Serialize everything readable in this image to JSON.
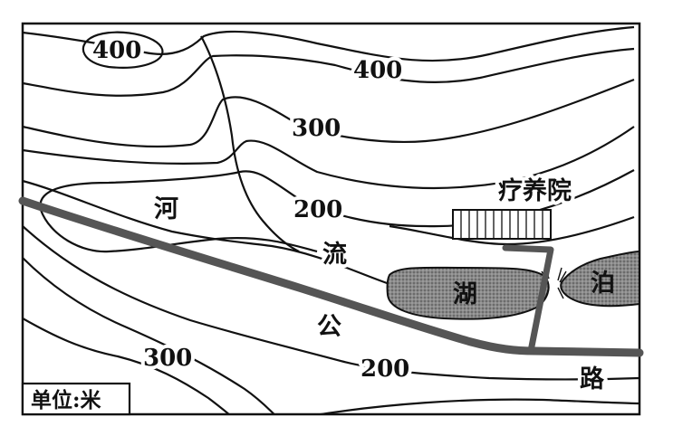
{
  "map": {
    "contour_labels": {
      "c400_top": "400",
      "c400_right": "400",
      "c300_top": "300",
      "c200_center": "200",
      "c300_bottom": "300",
      "c200_bottom": "200"
    },
    "features": {
      "sanatorium": "疗养院",
      "river_he": "河",
      "river_liu": "流",
      "lake_hu": "湖",
      "lake_po": "泊",
      "road_gong": "公",
      "road_lu": "路"
    },
    "legend": {
      "unit": "单位:米"
    },
    "colors": {
      "line": "#111111",
      "road": "#555555",
      "lake_fill": "#7a7a7a",
      "background": "#ffffff"
    }
  }
}
